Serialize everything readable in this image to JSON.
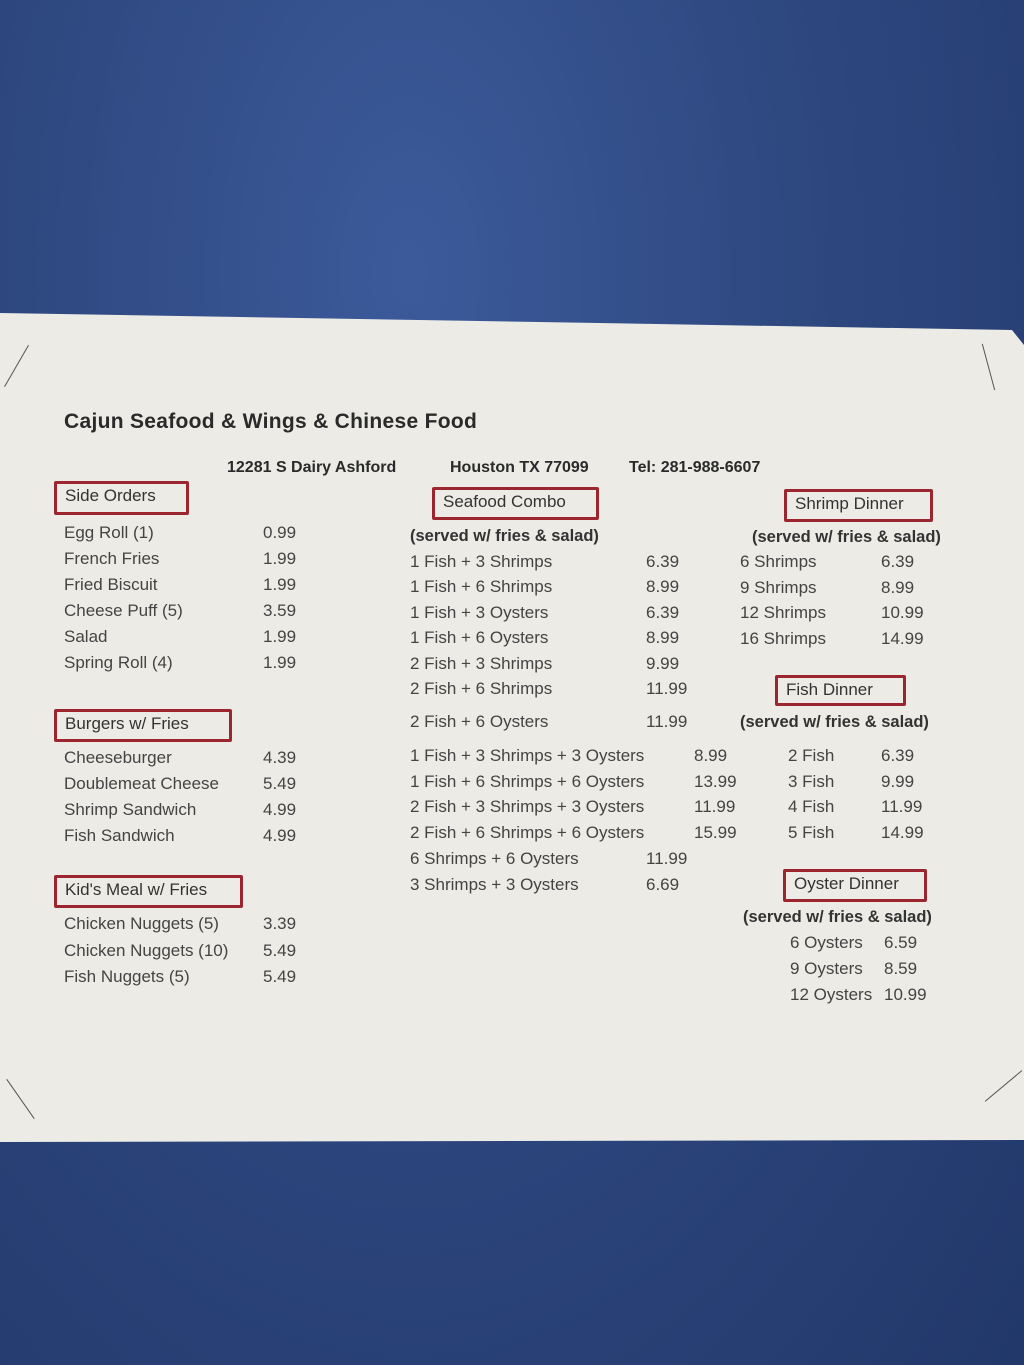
{
  "header": {
    "title": "Cajun Seafood & Wings & Chinese Food",
    "address": "12281 S Dairy Ashford",
    "city": "Houston TX 77099",
    "phone": "Tel: 281-988-6607"
  },
  "side_orders": {
    "heading": "Side Orders",
    "items": [
      {
        "name": "Egg Roll (1)",
        "price": "0.99"
      },
      {
        "name": "French Fries",
        "price": "1.99"
      },
      {
        "name": "Fried Biscuit",
        "price": "1.99"
      },
      {
        "name": "Cheese Puff (5)",
        "price": "3.59"
      },
      {
        "name": "Salad",
        "price": "1.99"
      },
      {
        "name": "Spring Roll (4)",
        "price": "1.99"
      }
    ]
  },
  "burgers": {
    "heading": "Burgers w/ Fries",
    "items": [
      {
        "name": "Cheeseburger",
        "price": "4.39"
      },
      {
        "name": "Doublemeat Cheese",
        "price": "5.49"
      },
      {
        "name": "Shrimp Sandwich",
        "price": "4.99"
      },
      {
        "name": "Fish Sandwich",
        "price": "4.99"
      }
    ]
  },
  "kids_meal": {
    "heading": "Kid's Meal w/ Fries",
    "items": [
      {
        "name": "Chicken Nuggets (5)",
        "price": "3.39"
      },
      {
        "name": "Chicken Nuggets (10)",
        "price": "5.49"
      },
      {
        "name": "Fish Nuggets (5)",
        "price": "5.49"
      }
    ]
  },
  "seafood_combo": {
    "heading": "Seafood Combo",
    "subtitle": "(served w/ fries & salad)",
    "items": [
      {
        "name": "1 Fish + 3 Shrimps",
        "price": "6.39"
      },
      {
        "name": "1 Fish + 6 Shrimps",
        "price": "8.99"
      },
      {
        "name": "1 Fish + 3 Oysters",
        "price": "6.39"
      },
      {
        "name": "1 Fish + 6 Oysters",
        "price": "8.99"
      },
      {
        "name": "2 Fish + 3 Shrimps",
        "price": "9.99"
      },
      {
        "name": "2 Fish + 6 Shrimps",
        "price": "11.99"
      },
      {
        "name": "2 Fish + 6 Oysters",
        "price": "11.99"
      },
      {
        "name": "1 Fish + 3 Shrimps + 3 Oysters",
        "price": "8.99"
      },
      {
        "name": "1 Fish + 6 Shrimps + 6 Oysters",
        "price": "13.99"
      },
      {
        "name": "2 Fish + 3 Shrimps + 3 Oysters",
        "price": "11.99"
      },
      {
        "name": "2 Fish + 6 Shrimps + 6 Oysters",
        "price": "15.99"
      },
      {
        "name": "6 Shrimps + 6 Oysters",
        "price": "11.99"
      },
      {
        "name": "3 Shrimps + 3 Oysters",
        "price": "6.69"
      }
    ]
  },
  "shrimp_dinner": {
    "heading": "Shrimp Dinner",
    "subtitle": "(served w/ fries & salad)",
    "items": [
      {
        "name": "6 Shrimps",
        "price": "6.39"
      },
      {
        "name": "9 Shrimps",
        "price": "8.99"
      },
      {
        "name": "12 Shrimps",
        "price": "10.99"
      },
      {
        "name": "16 Shrimps",
        "price": "14.99"
      }
    ]
  },
  "fish_dinner": {
    "heading": "Fish Dinner",
    "subtitle": "(served w/ fries & salad)",
    "items": [
      {
        "name": "2 Fish",
        "price": "6.39"
      },
      {
        "name": "3 Fish",
        "price": "9.99"
      },
      {
        "name": "4 Fish",
        "price": "11.99"
      },
      {
        "name": "5 Fish",
        "price": "14.99"
      }
    ]
  },
  "oyster_dinner": {
    "heading": "Oyster Dinner",
    "subtitle": "(served w/ fries & salad)",
    "items": [
      {
        "name": "6 Oysters",
        "price": "6.59"
      },
      {
        "name": "9 Oysters",
        "price": "8.59"
      },
      {
        "name": "12 Oysters",
        "price": "10.99"
      }
    ]
  },
  "colors": {
    "box_border": "#9b2630",
    "paper": "#ecebe6",
    "background": "#2f4a86"
  }
}
